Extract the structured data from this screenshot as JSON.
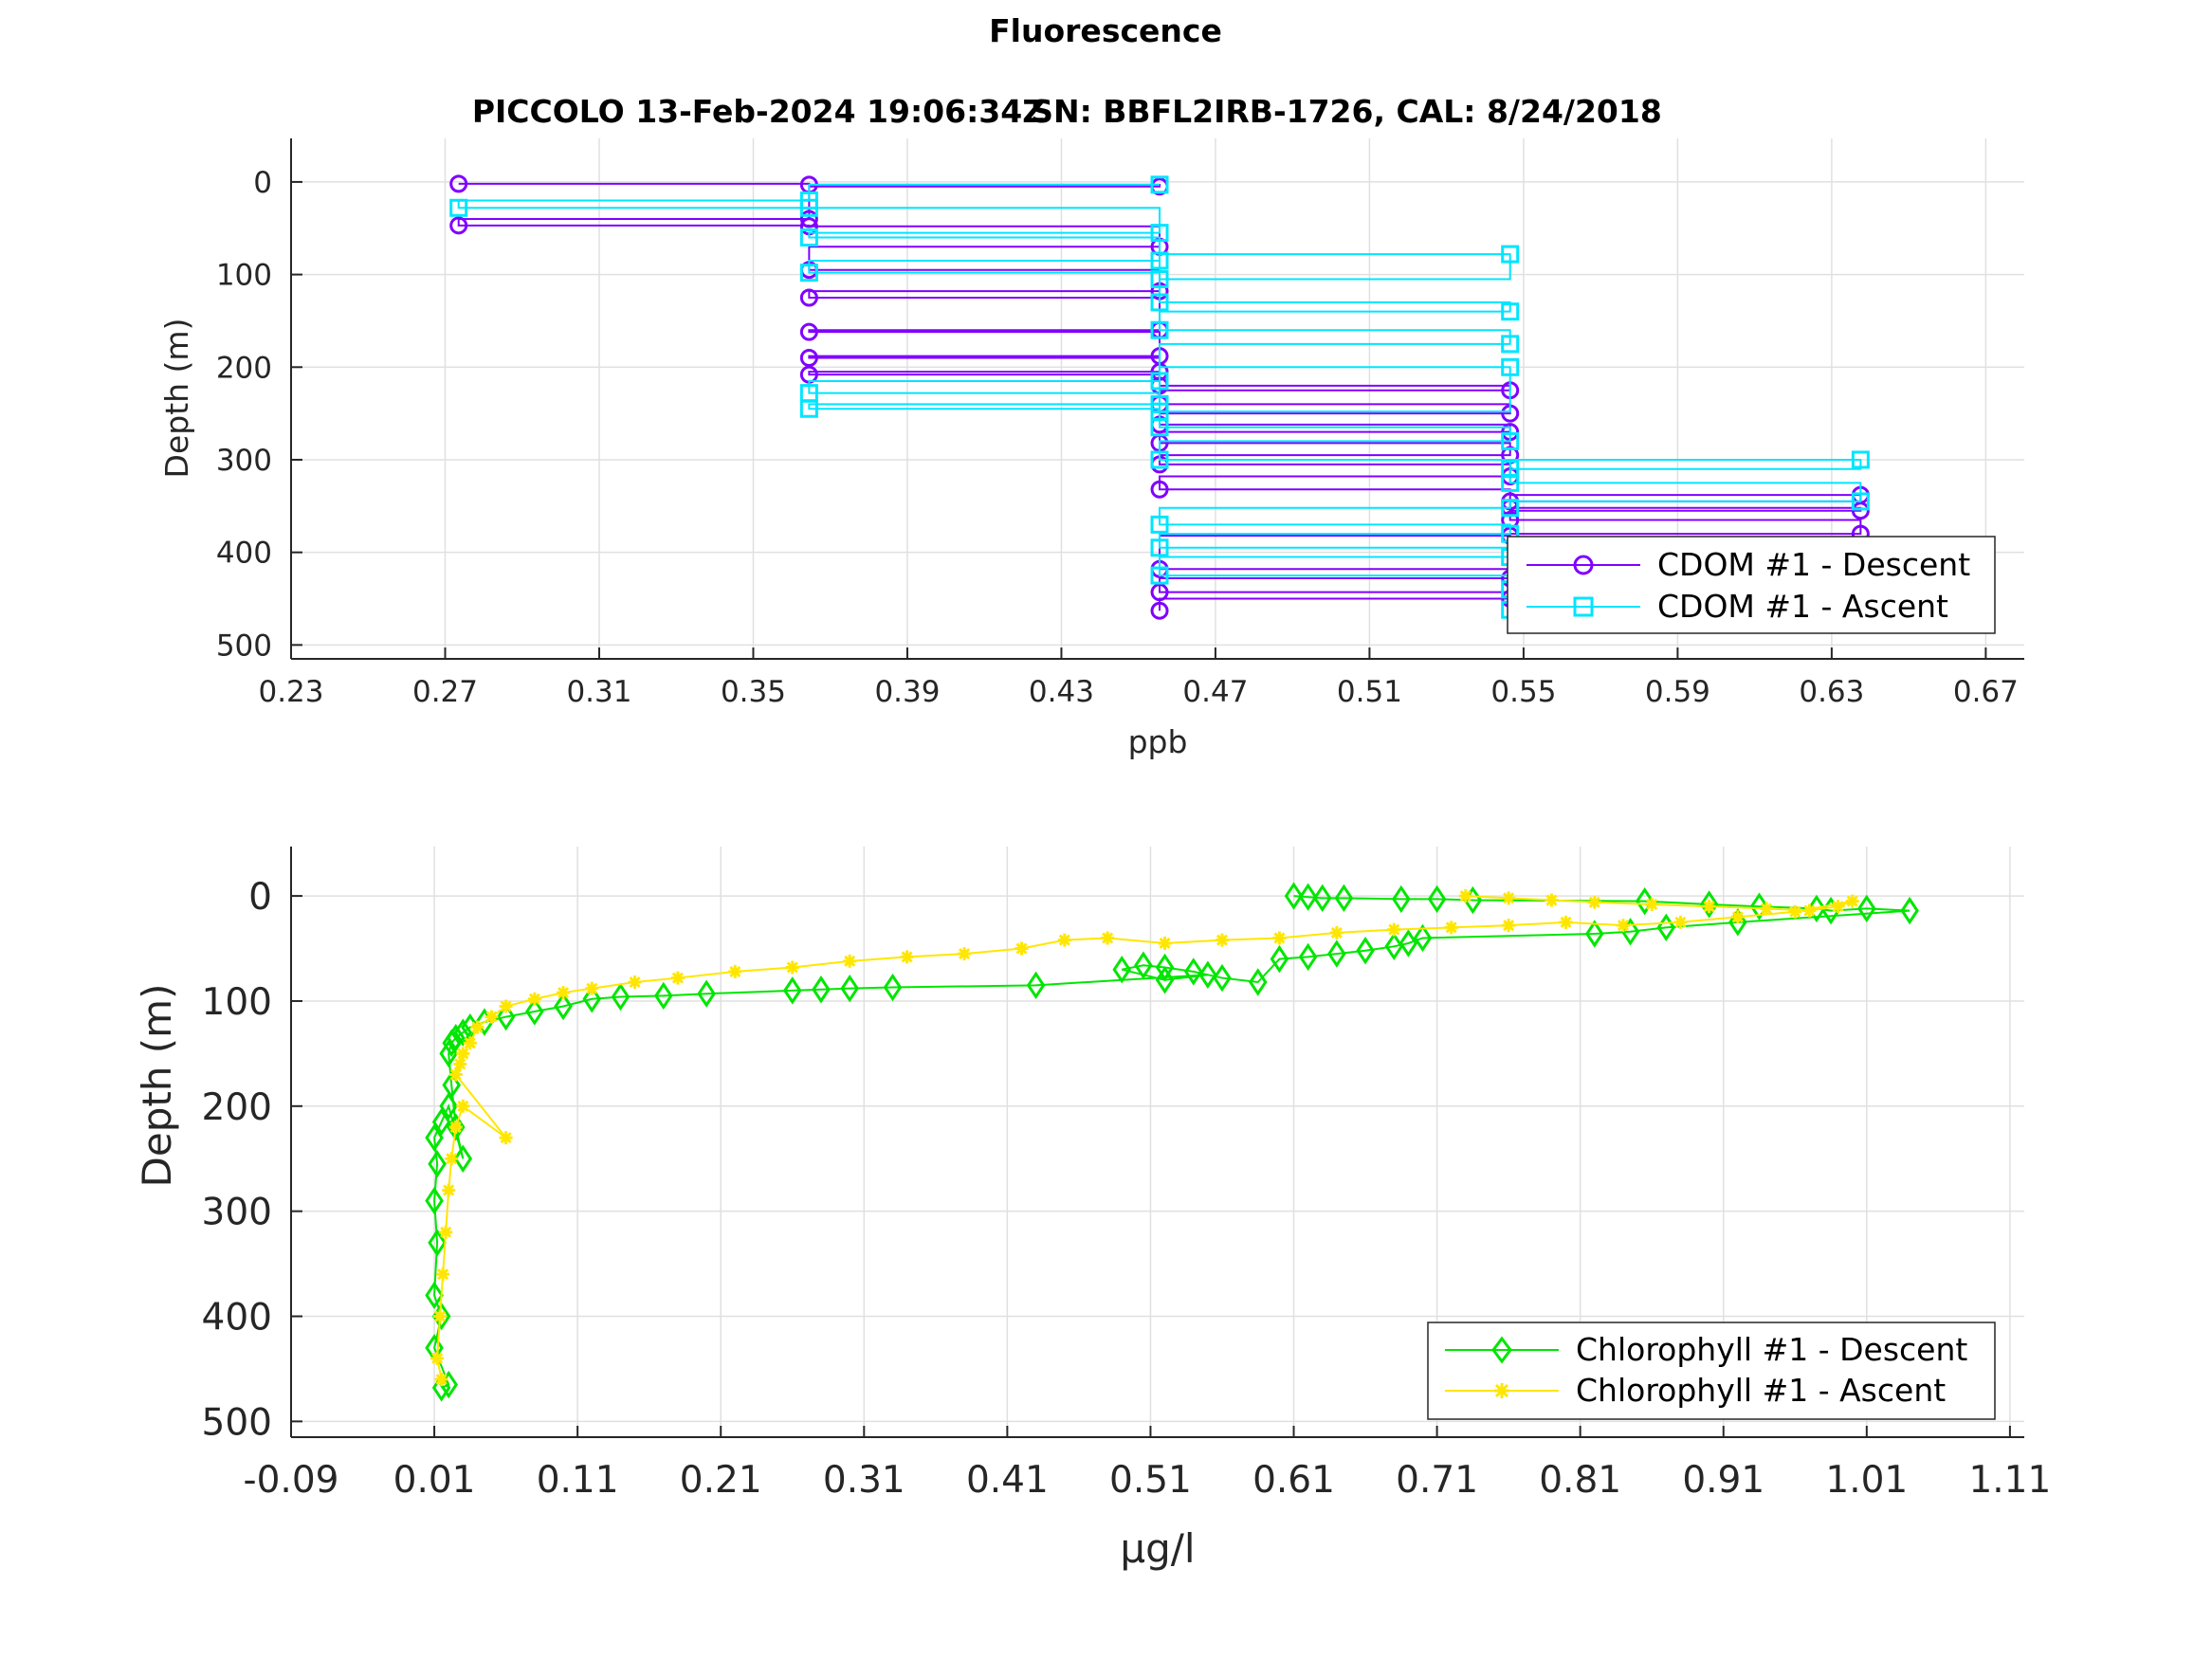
{
  "figure": {
    "title": "Fluorescence",
    "subtitle_left": "PICCOLO 13-Feb-2024 19:06:34Z",
    "subtitle_right": "SN: BBFL2IRB-1726, CAL: 8/24/2018"
  },
  "colors": {
    "cdom_descent": "#8000ff",
    "cdom_ascent": "#00e5ff",
    "chl_descent": "#00e600",
    "chl_ascent": "#ffe600"
  },
  "chart_data": [
    {
      "type": "line",
      "xlabel": "ppb",
      "ylabel": "Depth (m)",
      "xlim": [
        0.23,
        0.68
      ],
      "ylim": [
        -47,
        515
      ],
      "y_reversed": true,
      "grid": true,
      "legend_position": "bottom-right",
      "xticks": [
        0.23,
        0.27,
        0.31,
        0.35,
        0.39,
        0.43,
        0.47,
        0.51,
        0.55,
        0.59,
        0.63,
        0.67
      ],
      "xtick_labels": [
        "0.23",
        "0.27",
        "0.31",
        "0.35",
        "0.39",
        "0.43",
        "0.47",
        "0.51",
        "0.55",
        "0.59",
        "0.63",
        "0.67"
      ],
      "yticks": [
        0,
        100,
        200,
        300,
        400,
        500
      ],
      "ytick_labels": [
        "0",
        "100",
        "200",
        "300",
        "400",
        "500"
      ],
      "series": [
        {
          "name": "CDOM #1 - Descent",
          "marker": "circle",
          "x": [
            0.2735,
            0.3645,
            0.4555,
            0.3645,
            0.2735,
            0.3645,
            0.4555,
            0.3645,
            0.4555,
            0.3645,
            0.4555,
            0.3645,
            0.4555,
            0.3645,
            0.4555,
            0.3645,
            0.4555,
            0.5465,
            0.4555,
            0.5465,
            0.4555,
            0.5465,
            0.4555,
            0.5465,
            0.4555,
            0.5465,
            0.4555,
            0.5465,
            0.6375,
            0.5465,
            0.6375,
            0.5465,
            0.6375,
            0.5465,
            0.4555,
            0.5465,
            0.4555,
            0.5465,
            0.4555
          ],
          "y": [
            2,
            3,
            5,
            40,
            47,
            48,
            70,
            95,
            118,
            125,
            160,
            162,
            188,
            190,
            205,
            208,
            220,
            225,
            240,
            250,
            262,
            270,
            282,
            295,
            305,
            318,
            332,
            345,
            338,
            352,
            355,
            365,
            380,
            382,
            418,
            428,
            443,
            450,
            463
          ]
        },
        {
          "name": "CDOM #1 - Ascent",
          "marker": "square",
          "x": [
            0.4555,
            0.3645,
            0.2735,
            0.3645,
            0.4555,
            0.3645,
            0.4555,
            0.3645,
            0.4555,
            0.5465,
            0.4555,
            0.5465,
            0.4555,
            0.5465,
            0.4555,
            0.3645,
            0.4555,
            0.3645,
            0.4555,
            0.5465,
            0.4555,
            0.5465,
            0.4555,
            0.5465,
            0.6375,
            0.5465,
            0.6375,
            0.5465,
            0.4555,
            0.5465,
            0.4555,
            0.5465,
            0.4555,
            0.5465,
            0.6375,
            0.5465
          ],
          "y": [
            3,
            20,
            28,
            28,
            55,
            60,
            85,
            98,
            105,
            78,
            130,
            140,
            160,
            175,
            215,
            228,
            240,
            245,
            248,
            200,
            265,
            280,
            300,
            310,
            300,
            325,
            345,
            352,
            370,
            380,
            395,
            405,
            425,
            440,
            455,
            462
          ]
        }
      ]
    },
    {
      "type": "line",
      "xlabel": "μg/l",
      "ylabel": "Depth (m)",
      "xlim": [
        -0.09,
        1.12
      ],
      "ylim": [
        -47,
        515
      ],
      "y_reversed": true,
      "grid": true,
      "legend_position": "bottom-right",
      "xticks": [
        -0.09,
        0.01,
        0.11,
        0.21,
        0.31,
        0.41,
        0.51,
        0.61,
        0.71,
        0.81,
        0.91,
        1.01,
        1.11
      ],
      "xtick_labels": [
        "-0.09",
        "0.01",
        "0.11",
        "0.21",
        "0.31",
        "0.41",
        "0.51",
        "0.61",
        "0.71",
        "0.81",
        "0.91",
        "1.01",
        "1.11"
      ],
      "yticks": [
        0,
        100,
        200,
        300,
        400,
        500
      ],
      "ytick_labels": [
        "0",
        "100",
        "200",
        "300",
        "400",
        "500"
      ],
      "series": [
        {
          "name": "Chlorophyll #1 - Descent",
          "marker": "diamond",
          "x": [
            0.61,
            0.62,
            0.63,
            0.645,
            0.685,
            0.71,
            0.735,
            0.855,
            0.9,
            0.935,
            0.975,
            0.985,
            1.01,
            1.04,
            0.92,
            0.87,
            0.845,
            0.82,
            0.7,
            0.69,
            0.68,
            0.66,
            0.64,
            0.62,
            0.6,
            0.585,
            0.56,
            0.54,
            0.52,
            0.505,
            0.49,
            0.52,
            0.55,
            0.43,
            0.33,
            0.3,
            0.28,
            0.26,
            0.2,
            0.17,
            0.14,
            0.12,
            0.1,
            0.08,
            0.06,
            0.045,
            0.035,
            0.03,
            0.025,
            0.022,
            0.02,
            0.022,
            0.025,
            0.03,
            0.02,
            0.015,
            0.01,
            0.012,
            0.01,
            0.012,
            0.01,
            0.015,
            0.01,
            0.02,
            0.015
          ],
          "y": [
            0,
            1,
            2,
            2,
            3,
            3,
            4,
            5,
            8,
            10,
            12,
            14,
            12,
            14,
            25,
            30,
            34,
            36,
            40,
            45,
            48,
            52,
            55,
            58,
            60,
            82,
            78,
            72,
            68,
            66,
            70,
            80,
            75,
            85,
            87,
            88,
            89,
            90,
            93,
            95,
            96,
            98,
            105,
            110,
            115,
            120,
            125,
            130,
            135,
            140,
            150,
            180,
            220,
            250,
            200,
            215,
            230,
            255,
            290,
            330,
            380,
            400,
            430,
            465,
            468
          ]
        },
        {
          "name": "Chlorophyll #1 - Ascent",
          "marker": "asterisk",
          "x": [
            0.73,
            0.76,
            0.79,
            0.82,
            0.86,
            0.9,
            0.94,
            0.97,
            0.99,
            1.0,
            0.96,
            0.92,
            0.88,
            0.84,
            0.8,
            0.76,
            0.72,
            0.68,
            0.64,
            0.6,
            0.56,
            0.52,
            0.48,
            0.45,
            0.42,
            0.38,
            0.34,
            0.3,
            0.26,
            0.22,
            0.18,
            0.15,
            0.12,
            0.1,
            0.08,
            0.06,
            0.05,
            0.04,
            0.035,
            0.03,
            0.028,
            0.025,
            0.06,
            0.03,
            0.025,
            0.022,
            0.02,
            0.018,
            0.016,
            0.014,
            0.012,
            0.015
          ],
          "y": [
            0,
            2,
            4,
            6,
            8,
            10,
            12,
            14,
            10,
            5,
            15,
            20,
            25,
            28,
            25,
            28,
            30,
            32,
            35,
            40,
            42,
            45,
            40,
            42,
            50,
            55,
            58,
            62,
            68,
            72,
            78,
            82,
            88,
            92,
            98,
            105,
            115,
            125,
            140,
            150,
            160,
            170,
            230,
            200,
            220,
            250,
            280,
            320,
            360,
            400,
            440,
            460
          ]
        }
      ]
    }
  ]
}
